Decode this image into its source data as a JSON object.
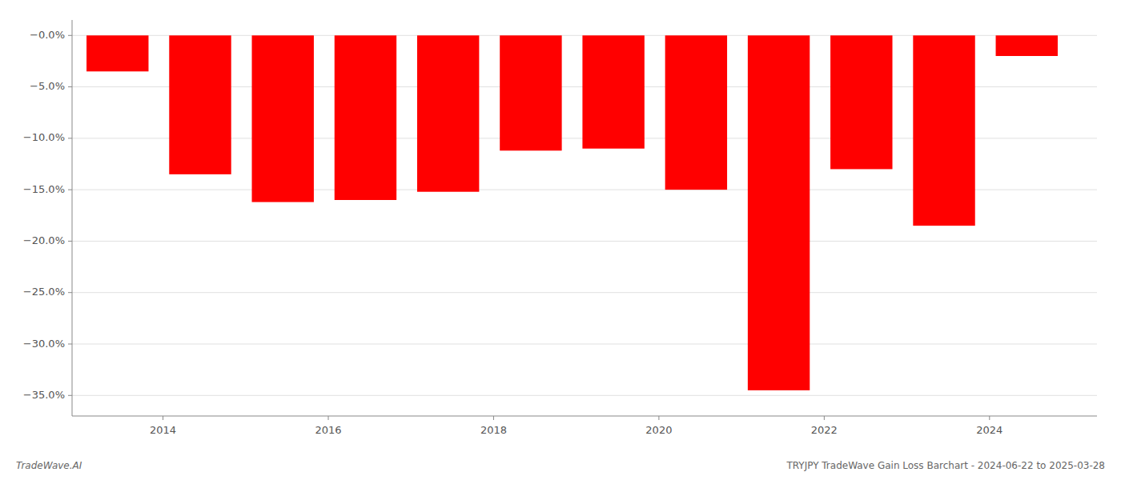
{
  "chart_data": {
    "type": "bar",
    "x": [
      2013.45,
      2014.45,
      2015.45,
      2016.45,
      2017.45,
      2018.45,
      2019.45,
      2020.45,
      2021.45,
      2022.45,
      2023.45,
      2024.45
    ],
    "values": [
      -3.5,
      -13.5,
      -16.2,
      -16.0,
      -15.2,
      -11.2,
      -11.0,
      -15.0,
      -34.5,
      -13.0,
      -18.5,
      -2.0
    ],
    "color": "#ff0000",
    "xlim": [
      2012.9,
      2025.3
    ],
    "xticks": [
      2014,
      2016,
      2018,
      2020,
      2022,
      2024
    ],
    "ylim": [
      -37,
      1.5
    ],
    "yticks": [
      {
        "value": 0.0,
        "label": "−0.0%"
      },
      {
        "value": -5.0,
        "label": "−5.0%"
      },
      {
        "value": -10.0,
        "label": "−10.0%"
      },
      {
        "value": -15.0,
        "label": "−15.0%"
      },
      {
        "value": -20.0,
        "label": "−20.0%"
      },
      {
        "value": -25.0,
        "label": "−25.0%"
      },
      {
        "value": -30.0,
        "label": "−30.0%"
      },
      {
        "value": -35.0,
        "label": "−35.0%"
      }
    ],
    "grid": true,
    "annotations": [
      "TradeWave.AI",
      "TRYJPY TradeWave Gain Loss Barchart - 2024-06-22 to 2025-03-28"
    ]
  }
}
